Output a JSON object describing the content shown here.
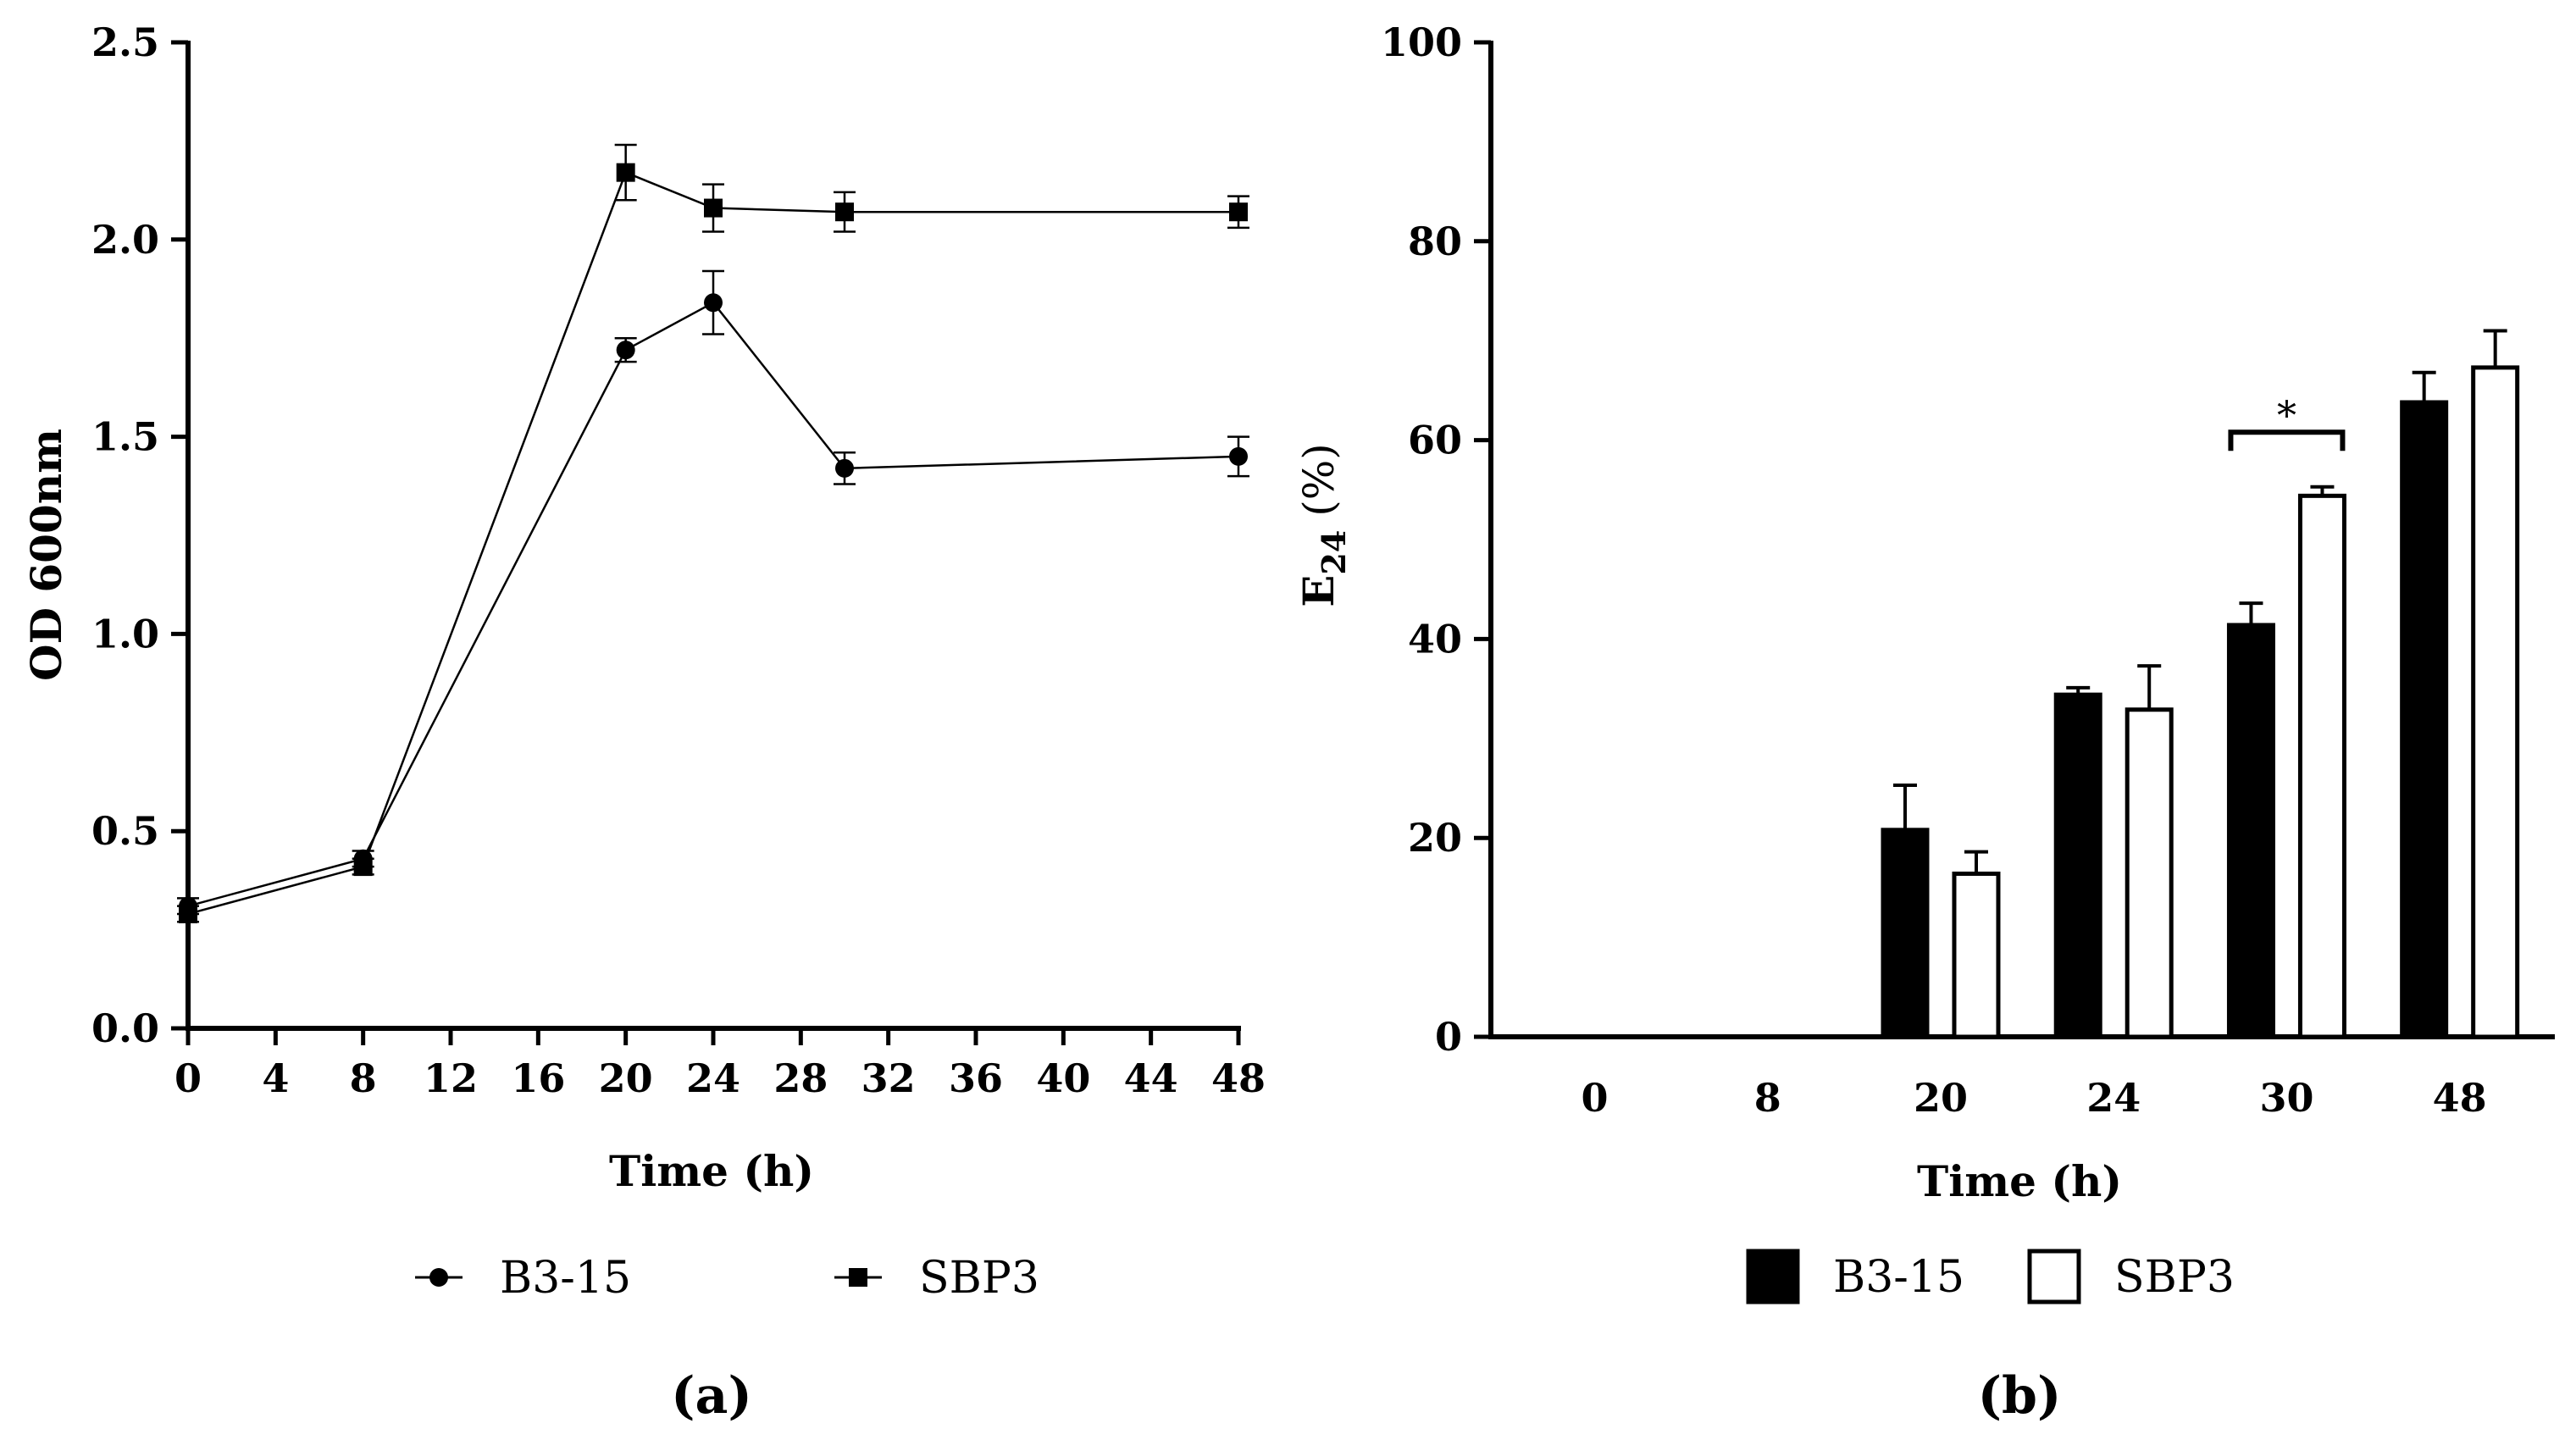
{
  "chart_data": [
    {
      "type": "line",
      "panel_label": "(a)",
      "xlabel": "Time (h)",
      "ylabel": "OD 600nm",
      "xlim": [
        0,
        48
      ],
      "ylim": [
        0,
        2.5
      ],
      "x_ticks": [
        "0",
        "4",
        "8",
        "12",
        "16",
        "20",
        "24",
        "28",
        "32",
        "36",
        "40",
        "44",
        "48"
      ],
      "y_ticks": [
        "0.0",
        "0.5",
        "1.0",
        "1.5",
        "2.0",
        "2.5"
      ],
      "series": [
        {
          "name": "B3-15",
          "marker": "circle",
          "x": [
            0,
            8,
            20,
            24,
            30,
            48
          ],
          "values": [
            0.31,
            0.43,
            1.72,
            1.84,
            1.42,
            1.45
          ],
          "errors": [
            0.02,
            0.02,
            0.03,
            0.08,
            0.04,
            0.05
          ]
        },
        {
          "name": "SBP3",
          "marker": "square",
          "x": [
            0,
            8,
            20,
            24,
            30,
            48
          ],
          "values": [
            0.29,
            0.41,
            2.17,
            2.08,
            2.07,
            2.07
          ],
          "errors": [
            0.02,
            0.02,
            0.07,
            0.06,
            0.05,
            0.04
          ]
        }
      ],
      "legend": "bottom"
    },
    {
      "type": "bar",
      "panel_label": "(b)",
      "xlabel": "Time (h)",
      "ylabel": "E",
      "ylabel_sub": "24",
      "ylabel_unit": " (%)",
      "ylim": [
        0,
        100
      ],
      "categories": [
        "0",
        "8",
        "20",
        "24",
        "30",
        "48"
      ],
      "y_ticks": [
        "0",
        "20",
        "40",
        "60",
        "80",
        "100"
      ],
      "series": [
        {
          "name": "B3-15",
          "fill": "#000000",
          "values": [
            0,
            0,
            20.8,
            34.4,
            41.4,
            63.8
          ],
          "errors": [
            0,
            0,
            4.5,
            0.7,
            2.2,
            3.0
          ]
        },
        {
          "name": "SBP3",
          "fill": "#ffffff",
          "values": [
            0,
            0,
            16.4,
            32.9,
            54.4,
            67.3
          ],
          "errors": [
            0,
            0,
            2.2,
            4.4,
            0.9,
            3.7
          ]
        }
      ],
      "annotations": [
        {
          "text": "*",
          "category": "30",
          "bracket_y": 60.8
        }
      ],
      "legend": "bottom"
    }
  ]
}
